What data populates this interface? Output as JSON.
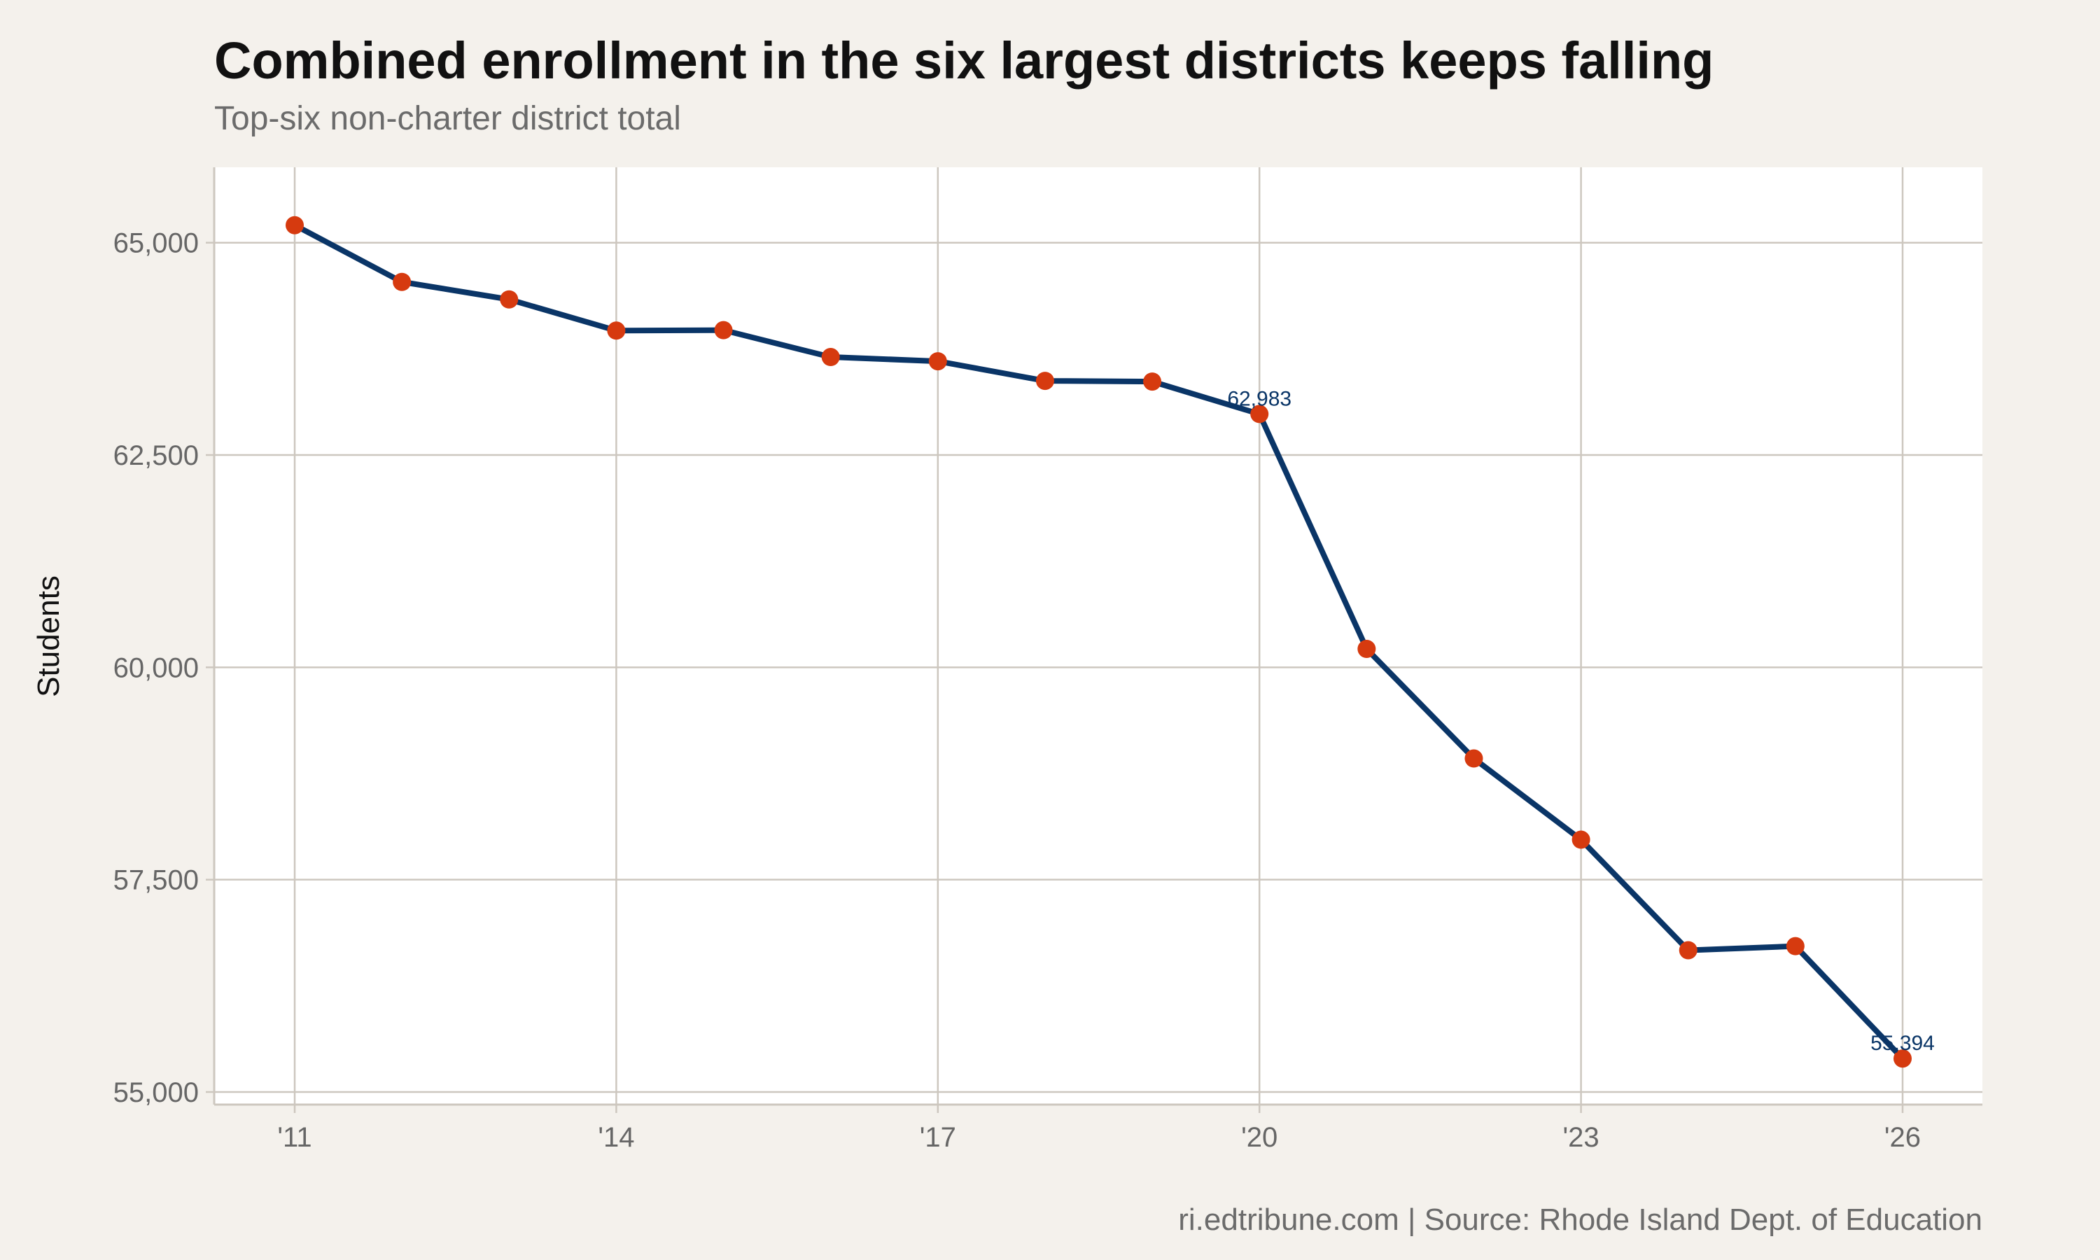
{
  "chart_data": {
    "type": "line",
    "title": "Combined enrollment in the six largest districts keeps falling",
    "subtitle": "Top-six non-charter district total",
    "caption": "ri.edtribune.com | Source: Rhode Island Dept. of Education",
    "xlabel": "",
    "ylabel": "Students",
    "x": [
      2011,
      2012,
      2013,
      2014,
      2015,
      2016,
      2017,
      2018,
      2019,
      2020,
      2021,
      2022,
      2023,
      2024,
      2025,
      2026
    ],
    "values": [
      65206,
      64538,
      64332,
      63965,
      63970,
      63654,
      63604,
      63373,
      63365,
      62983,
      60217,
      58927,
      57971,
      56669,
      56717,
      55394
    ],
    "data_labels": [
      {
        "x": 2020,
        "text": "62,983"
      },
      {
        "x": 2026,
        "text": "55,394"
      }
    ],
    "xticks": [
      2011,
      2014,
      2017,
      2020,
      2023,
      2026
    ],
    "xtick_labels": [
      "'11",
      "'14",
      "'17",
      "'20",
      "'23",
      "'26"
    ],
    "yticks": [
      55000,
      57500,
      60000,
      62500,
      65000
    ],
    "ytick_labels": [
      "55,000",
      "57,500",
      "60,000",
      "62,500",
      "65,000"
    ],
    "xlim": [
      2010.25,
      2026.75
    ],
    "ylim": [
      54850,
      65900
    ],
    "grid": true,
    "colors": {
      "line": "#0a3567",
      "points": "#d63a0f",
      "background": "#f4f1ec",
      "panel": "#ffffff",
      "grid": "#cdc7bf"
    }
  }
}
